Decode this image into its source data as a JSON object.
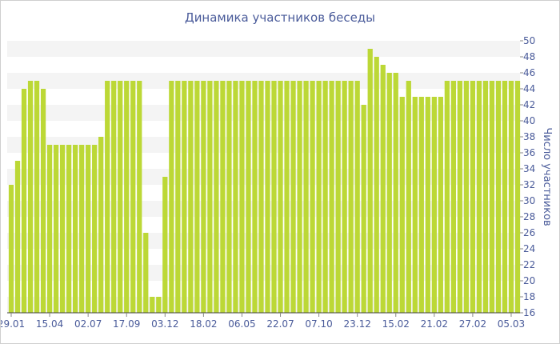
{
  "chart_data": {
    "type": "bar",
    "title": "Динамика участников беседы",
    "ylabel": "Число участников",
    "xlabel": "",
    "ylim": [
      16,
      50
    ],
    "y_ticks": [
      16,
      18,
      20,
      22,
      24,
      26,
      28,
      30,
      32,
      34,
      36,
      38,
      40,
      42,
      44,
      46,
      48,
      50
    ],
    "x_tick_labels": [
      "29.01",
      "15.04",
      "02.07",
      "17.09",
      "03.12",
      "18.02",
      "06.05",
      "22.07",
      "07.10",
      "23.12",
      "15.02",
      "21.02",
      "27.02",
      "05.03"
    ],
    "x_tick_bar_index": [
      0,
      6,
      12,
      18,
      24,
      30,
      36,
      42,
      48,
      54,
      60,
      66,
      72,
      78
    ],
    "grid": "horizontal bands",
    "legend": "none",
    "bar_color": "#bcd836",
    "band_color": "#f4f4f4",
    "text_color": "#4a5b9a",
    "values": [
      32,
      35,
      44,
      45,
      45,
      44,
      37,
      37,
      37,
      37,
      37,
      37,
      37,
      37,
      38,
      45,
      45,
      45,
      45,
      45,
      45,
      26,
      18,
      18,
      33,
      45,
      45,
      45,
      45,
      45,
      45,
      45,
      45,
      45,
      45,
      45,
      45,
      45,
      45,
      45,
      45,
      45,
      45,
      45,
      45,
      45,
      45,
      45,
      45,
      45,
      45,
      45,
      45,
      45,
      45,
      42,
      49,
      48,
      47,
      46,
      46,
      43,
      45,
      43,
      43,
      43,
      43,
      43,
      45,
      45,
      45,
      45,
      45,
      45,
      45,
      45,
      45,
      45,
      45,
      45
    ]
  }
}
